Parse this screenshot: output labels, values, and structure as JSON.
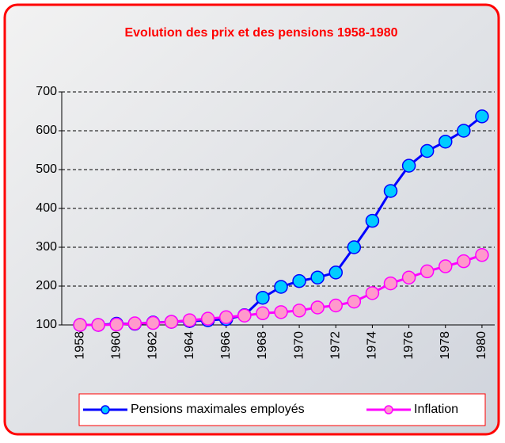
{
  "chart_data": {
    "type": "line",
    "title": "Evolution des prix et des pensions 1958-1980",
    "x": [
      1958,
      1959,
      1960,
      1961,
      1962,
      1963,
      1964,
      1965,
      1966,
      1967,
      1968,
      1969,
      1970,
      1971,
      1972,
      1973,
      1974,
      1975,
      1976,
      1977,
      1978,
      1979,
      1980
    ],
    "series": [
      {
        "name": "Pensions maximales employés",
        "color": "#0000ff",
        "marker_color": "#00ccff",
        "values": [
          100,
          100,
          103,
          103,
          106,
          108,
          110,
          112,
          115,
          125,
          170,
          198,
          213,
          222,
          235,
          300,
          368,
          445,
          510,
          548,
          572,
          600,
          637
        ]
      },
      {
        "name": "Inflation",
        "color": "#ff00ff",
        "marker_color": "#ff99cc",
        "values": [
          100,
          100,
          101,
          104,
          105,
          108,
          112,
          116,
          120,
          124,
          130,
          133,
          137,
          145,
          150,
          160,
          182,
          207,
          222,
          238,
          251,
          264,
          280
        ]
      }
    ],
    "xlim": [
      1957,
      1981
    ],
    "xticks": [
      1958,
      1960,
      1962,
      1964,
      1966,
      1968,
      1970,
      1972,
      1974,
      1976,
      1978,
      1980
    ],
    "ylim": [
      100,
      700
    ],
    "yticks": [
      100,
      200,
      300,
      400,
      500,
      600,
      700
    ],
    "grid": true,
    "legend": "bottom"
  }
}
